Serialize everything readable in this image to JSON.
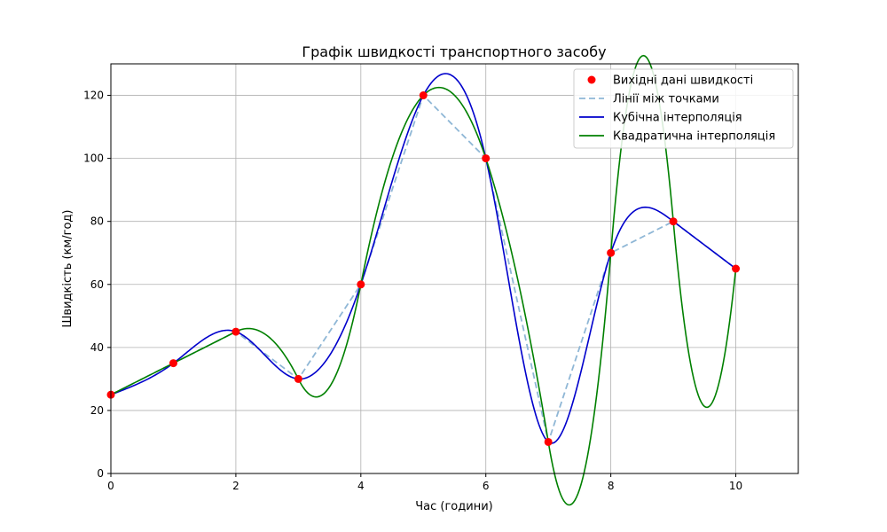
{
  "chart_data": {
    "type": "line",
    "title": "Графік швидкості транспортного засобу",
    "xlabel": "Час (години)",
    "ylabel": "Швидкість (км/год)",
    "xlim": [
      0,
      11
    ],
    "ylim": [
      0,
      130
    ],
    "xticks": [
      0,
      2,
      4,
      6,
      8,
      10
    ],
    "yticks": [
      0,
      20,
      40,
      60,
      80,
      100,
      120
    ],
    "grid": true,
    "legend_position": "top-right",
    "x": [
      0,
      1,
      2,
      3,
      4,
      5,
      6,
      7,
      8,
      9,
      10
    ],
    "y": [
      25,
      35,
      45,
      30,
      60,
      120,
      100,
      10,
      70,
      80,
      65
    ],
    "series": [
      {
        "name": "Вихідні дані швидкості",
        "kind": "scatter",
        "color": "#ff0000"
      },
      {
        "name": "Лінії між точками",
        "kind": "dashed-line",
        "color": "#8fb7d6"
      },
      {
        "name": "Кубічна інтерполяція",
        "kind": "cubic-spline",
        "color": "#0000cc"
      },
      {
        "name": "Квадратична інтерполяція",
        "kind": "quadratic-spline",
        "color": "#008000"
      }
    ]
  }
}
